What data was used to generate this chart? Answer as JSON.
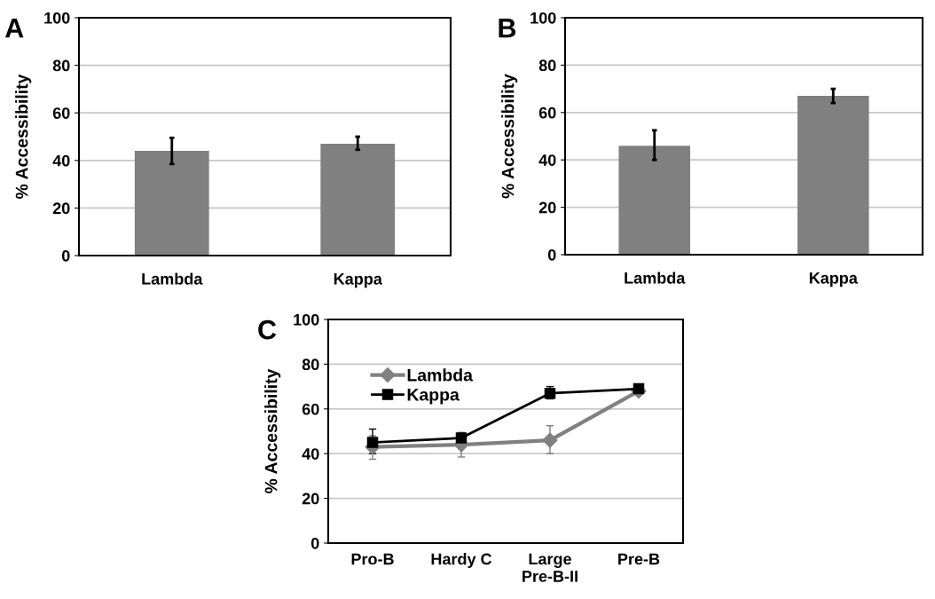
{
  "chart_data": [
    {
      "type": "bar",
      "title": "A",
      "ylabel": "% Accessibility",
      "categories": [
        "Lambda",
        "Kappa"
      ],
      "values": [
        44,
        47
      ],
      "errors": [
        [
          38.5,
          49.5
        ],
        [
          44.5,
          50
        ]
      ],
      "color": "#808080",
      "ylim": [
        0,
        100
      ],
      "yticks": [
        0,
        20,
        40,
        60,
        80,
        100
      ],
      "grid": "y"
    },
    {
      "type": "bar",
      "title": "B",
      "ylabel": "% Accessibility",
      "categories": [
        "Lambda",
        "Kappa"
      ],
      "values": [
        46,
        67
      ],
      "errors": [
        [
          40,
          52.5
        ],
        [
          64,
          70
        ]
      ],
      "color": "#808080",
      "ylim": [
        0,
        100
      ],
      "yticks": [
        0,
        20,
        40,
        60,
        80,
        100
      ],
      "grid": "y"
    },
    {
      "type": "line",
      "title": "C",
      "ylabel": "% Accessibility",
      "categories": [
        "Pro-B",
        "Hardy C",
        "Large\nPre-B-II",
        "Pre-B"
      ],
      "series": [
        {
          "name": "Lambda",
          "color": "#808080",
          "marker": "diamond",
          "values": [
            43,
            44,
            46,
            68
          ],
          "errors": [
            [
              37.5,
              48
            ],
            [
              38.5,
              49.5
            ],
            [
              40,
              52.5
            ],
            null
          ]
        },
        {
          "name": "Kappa",
          "color": "#000000",
          "marker": "square",
          "values": [
            45,
            47,
            67,
            69
          ],
          "errors": [
            [
              40,
              51
            ],
            [
              45,
              49
            ],
            [
              64.5,
              70
            ],
            null
          ]
        }
      ],
      "ylim": [
        0,
        100
      ],
      "yticks": [
        0,
        20,
        40,
        60,
        80,
        100
      ],
      "grid": "y",
      "legend": "top left"
    }
  ]
}
